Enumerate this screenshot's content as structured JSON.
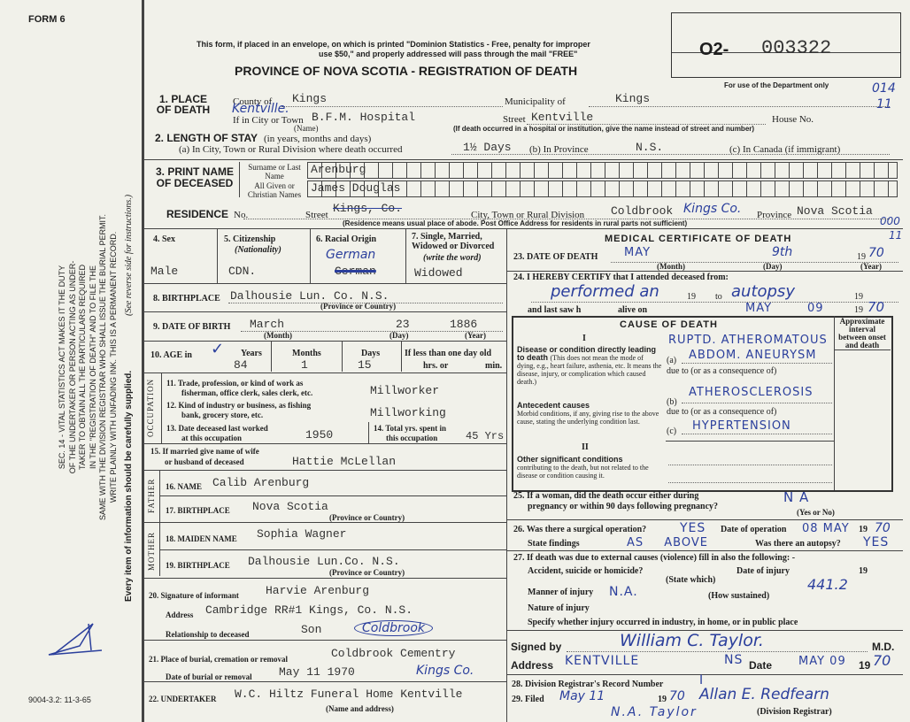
{
  "form_id": "FORM 6",
  "form_code": "9004-3.2: 11-3-65",
  "side_text": [
    "SEC. 14 - VITAL STATISTICS ACT MAKES IT THE DUTY",
    "OF THE UNDERTAKER OR PERSON ACTING AS UNDER-",
    "TAKER TO OBTAIN ALL THE PARTICULARS REQUIRED",
    "IN THE \"REGISTRATION OF DEATH\" AND TO FILE THE",
    "SAME WITH THE DIVISION REGISTRAR WHO SHALL ISSUE THE BURIAL PERMIT.",
    "WRITE PLAINLY WITH UNFADING INK. THIS IS A PERMANENT RECORD."
  ],
  "side_footer": "Every item of information should be carefully supplied.",
  "side_note": "(See reverse side for instructions.)",
  "header": {
    "notice1": "This form, if placed in an envelope, on which is printed \"Dominion Statistics - Free, penalty for improper",
    "notice2": "use $50,\" and properly addressed will pass through the mail \"FREE\"",
    "title": "PROVINCE OF NOVA SCOTIA - REGISTRATION OF DEATH",
    "reg_prefix": "O2-",
    "reg_number": "003322",
    "dept_label": "For use of the Department only",
    "dept_code1": "014",
    "dept_code2": "11",
    "dept_code3": "000",
    "dept_code4": "11"
  },
  "place": {
    "label": "1. PLACE OF DEATH",
    "county_label": "County of",
    "county": "Kings",
    "municipality_label": "Municipality of",
    "municipality": "Kings",
    "city_label": "If in City or Town",
    "city_hand": "Kentville.",
    "hospital": "B.F.M. Hospital",
    "name_note": "(Name)",
    "street_label": "Street",
    "street": "Kentville",
    "house_label": "House No.",
    "hospital_note": "(If death occurred in a hospital or institution, give the name instead of street and number)"
  },
  "stay": {
    "label": "2. LENGTH OF STAY",
    "label_note": "(in years, months and days)",
    "a_label": "(a) In City, Town or Rural Division where death occurred",
    "a_value": "1½ Days",
    "b_label": "(b) In Province",
    "b_value": "N.S.",
    "c_label": "(c) In Canada (if immigrant)"
  },
  "name": {
    "label": "3. PRINT NAME OF DECEASED",
    "surname_label": "Surname or Last Name",
    "surname": "Arenburg",
    "given_label": "All Given or Christian Names",
    "given": "James Douglas"
  },
  "residence": {
    "label": "RESIDENCE",
    "no_label": "No.",
    "street_label": "Street",
    "street": "Kings, Co.",
    "city_label": "City, Town or Rural Division",
    "city": "Coldbrook",
    "city_hand": "Kings Co.",
    "province_label": "Province",
    "province": "Nova Scotia",
    "note": "(Residence means usual place of abode. Post Office Address for residents in rural parts not sufficient)"
  },
  "personal": {
    "sex_label": "4. Sex",
    "sex": "Male",
    "citizenship_label": "5. Citizenship",
    "citizenship_note": "(Nationality)",
    "citizenship": "CDN.",
    "racial_label": "6. Racial Origin",
    "racial_hand": "German",
    "racial_struck": "German",
    "marital_label": "7. Single, Married, Widowed or Divorced",
    "marital_note": "(write the word)",
    "marital": "Widowed"
  },
  "birthplace": {
    "label": "8. BIRTHPLACE",
    "value": "Dalhousie  Lun. Co. N.S.",
    "note": "(Province or Country)"
  },
  "dob": {
    "label": "9. DATE OF BIRTH",
    "month": "March",
    "day": "23",
    "year": "1886",
    "month_note": "(Month)",
    "day_note": "(Day)",
    "year_note": "(Year)"
  },
  "age": {
    "label": "10. AGE in",
    "years_label": "Years",
    "years": "84",
    "months_label": "Months",
    "months": "1",
    "days_label": "Days",
    "days": "15",
    "less_label": "If less than one day old",
    "hrs_label": "hrs. or",
    "min_label": "min."
  },
  "occupation": {
    "side": "OCCUPATION",
    "q11": "11. Trade, profession, or kind of work as",
    "q11b": "fisherman, office clerk, sales clerk, etc.",
    "a11": "Millworker",
    "q12": "12. Kind of industry or business, as fishing",
    "q12b": "bank, grocery store, etc.",
    "a12": "Millworking",
    "q13": "13. Date deceased last worked",
    "q13b": "at this occupation",
    "a13": "1950",
    "q14": "14. Total yrs. spent in",
    "q14b": "this occupation",
    "a14": "45 Yrs"
  },
  "spouse": {
    "label": "15. If married give name of wife",
    "label2": "or husband of deceased",
    "value": "Hattie  McLellan"
  },
  "father": {
    "side": "FATHER",
    "name_label": "16. NAME",
    "name": "Calib Arenburg",
    "bp_label": "17. BIRTHPLACE",
    "bp": "Nova Scotia",
    "note": "(Province or Country)"
  },
  "mother": {
    "side": "MOTHER",
    "name_label": "18. MAIDEN NAME",
    "name": "Sophia Wagner",
    "bp_label": "19. BIRTHPLACE",
    "bp": "Dalhousie Lun.Co. N.S.",
    "note": "(Province or Country)"
  },
  "informant": {
    "label": "20. Signature of informant",
    "name": "Harvie Arenburg",
    "address_label": "Address",
    "address": "Cambridge RR#1 Kings, Co. N.S.",
    "address_hand": "Coldbrook",
    "rel_label": "Relationship to deceased",
    "rel": "Son"
  },
  "burial": {
    "place_label": "21. Place of burial, cremation or removal",
    "place": "Coldbrook Cementry",
    "place_hand": "Kings Co.",
    "date_label": "Date of burial or removal",
    "date": "May 11  1970"
  },
  "undertaker": {
    "label": "22. UNDERTAKER",
    "value": "W.C. Hiltz Funeral Home Kentville",
    "note": "(Name and address)"
  },
  "medical": {
    "title": "MEDICAL CERTIFICATE OF DEATH",
    "dod_label": "23. DATE OF DEATH",
    "dod_month": "MAY",
    "dod_day": "9th",
    "dod_year_prefix": "19",
    "dod_year": "70",
    "month_note": "(Month)",
    "day_note": "(Day)",
    "year_note": "(Year)",
    "certify_label": "24. I HEREBY CERTIFY that I attended deceased from:",
    "certify_hand1": "performed an",
    "certify_hand2": "autopsy",
    "nineteen": "19",
    "to_label": "to",
    "lastsaw_label": "and last saw h",
    "alive_label": "alive on",
    "lastsaw_month": "MAY",
    "lastsaw_day": "09",
    "lastsaw_year": "70"
  },
  "cause": {
    "title": "CAUSE OF DEATH",
    "interval_label": "Approximate interval between onset and death",
    "part1": "I",
    "direct_title": "Disease or condition directly leading to death",
    "direct_text": "(This does not mean the mode of dying, e.g., heart failure, asthenia, etc. It means the disease, injury, or complication which caused death.)",
    "a_label": "(a)",
    "a_value1": "RUPTD. ATHEROMATOUS",
    "a_value2": "ABDOM. ANEURYSM",
    "due_label": "due to (or as a consequence of)",
    "ante_title": "Antecedent causes",
    "ante_text": "Morbid conditions, if any, giving rise to the above cause, stating the underlying condition last.",
    "b_label": "(b)",
    "b_value": "ATHEROSCLEROSIS",
    "c_label": "(c)",
    "c_value": "HYPERTENSION",
    "part2": "II",
    "other_title": "Other significant conditions",
    "other_text": "contributing to the death, but not related to the disease or condition causing it."
  },
  "q25": {
    "label": "25. If a woman, did the death occur either during",
    "label2": "pregnancy or within 90 days following pregnancy?",
    "value": "N A",
    "note": "(Yes or No)"
  },
  "q26": {
    "label": "26. Was there a surgical operation?",
    "value": "YES",
    "date_label": "Date of operation",
    "date": "08 MAY",
    "year_prefix": "19",
    "year": "70",
    "findings_label": "State findings",
    "findings": "AS ABOVE",
    "autopsy_label": "Was there an autopsy?",
    "autopsy": "YES"
  },
  "q27": {
    "label": "27. If death was due to external causes (violence) fill in also the following: -",
    "accident_label": "Accident, suicide or homicide?",
    "state_note": "(State which)",
    "injury_date_label": "Date of injury",
    "year_prefix": "19",
    "manner_label": "Manner of injury",
    "manner": "N.A.",
    "how_note": "(How sustained)",
    "code": "441.2",
    "nature_label": "Nature of injury",
    "specify_label": "Specify whether injury occurred in industry, in home, or in public place"
  },
  "signature": {
    "signed_label": "Signed by",
    "signed": "William C. Taylor.",
    "md": "M.D.",
    "address_label": "Address",
    "address": "KENTVILLE",
    "address2": "NS",
    "date_label": "Date",
    "date": "MAY 09",
    "year_prefix": "19",
    "year": "70"
  },
  "registrar": {
    "q28": "28. Division Registrar's Record Number",
    "q28_value": "I",
    "q29": "29. Filed",
    "filed": "May 11",
    "year_prefix": "19",
    "year": "70",
    "registrar_sig": "Allan E. Redfearn",
    "registrar_note": "(Division Registrar)",
    "by": "N.A. Taylor"
  },
  "colors": {
    "paper": "#f1f1ea",
    "ink": "#2b3f9c",
    "print": "#1e1e1e"
  }
}
